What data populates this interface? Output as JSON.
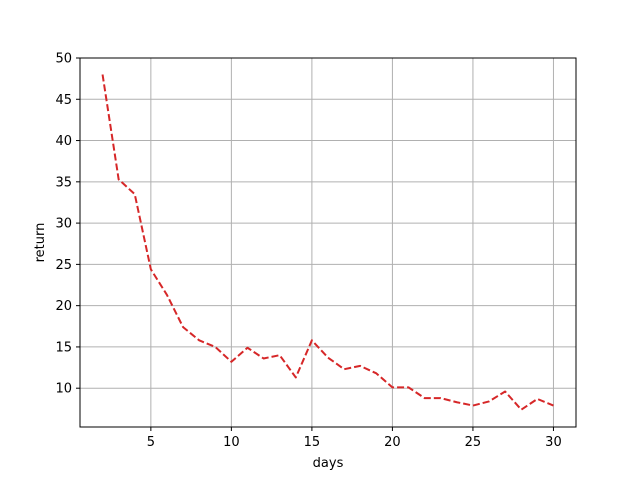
{
  "chart_data": {
    "type": "line",
    "title": "",
    "xlabel": "days",
    "ylabel": "return",
    "xlim": [
      0.6,
      31.4
    ],
    "ylim": [
      5.3,
      50
    ],
    "xticks": [
      5,
      10,
      15,
      20,
      25,
      30
    ],
    "yticks": [
      10,
      15,
      20,
      25,
      30,
      35,
      40,
      45,
      50
    ],
    "grid": true,
    "legend": "none",
    "series": [
      {
        "line_style": "dashed",
        "color": "#d62728",
        "x": [
          2,
          3,
          4,
          5,
          6,
          7,
          8,
          9,
          10,
          11,
          12,
          13,
          14,
          15,
          16,
          17,
          18,
          19,
          20,
          21,
          22,
          23,
          24,
          25,
          26,
          27,
          28,
          29,
          30
        ],
        "y": [
          48.0,
          35.3,
          33.5,
          24.4,
          21.3,
          17.4,
          15.8,
          15.0,
          13.2,
          14.9,
          13.6,
          14.0,
          11.3,
          15.8,
          13.7,
          12.3,
          12.7,
          11.8,
          10.1,
          10.1,
          8.8,
          8.8,
          8.3,
          7.9,
          8.4,
          9.6,
          7.4,
          8.7,
          7.9
        ]
      }
    ]
  }
}
